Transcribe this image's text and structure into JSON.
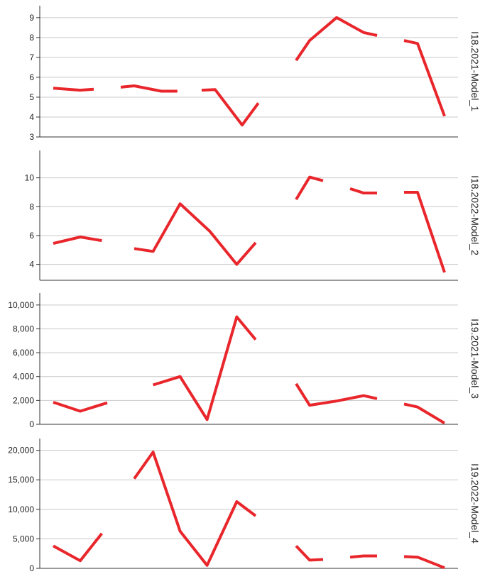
{
  "chart_data": [
    {
      "type": "line",
      "title": "I18.2021-Model_1",
      "yticks": [
        3,
        4,
        5,
        6,
        7,
        8,
        9
      ],
      "ytick_labels": [
        "3",
        "4",
        "5",
        "6",
        "7",
        "8",
        "9"
      ],
      "ylim": [
        3,
        9.6
      ],
      "grid": true,
      "color": "#e8262b",
      "segments": [
        [
          [
            1,
            5.45
          ],
          [
            2,
            5.35
          ],
          [
            2.5,
            5.4
          ]
        ],
        [
          [
            3.5,
            5.5
          ],
          [
            4,
            5.57
          ],
          [
            5,
            5.3
          ],
          [
            5.6,
            5.3
          ]
        ],
        [
          [
            6.5,
            5.35
          ],
          [
            7,
            5.38
          ],
          [
            8,
            3.6
          ],
          [
            8.6,
            4.7
          ]
        ],
        [
          [
            10,
            6.85
          ],
          [
            10.5,
            7.85
          ],
          [
            11.5,
            9.0
          ],
          [
            12.5,
            8.25
          ],
          [
            13,
            8.1
          ]
        ],
        [
          [
            14,
            7.85
          ],
          [
            14.5,
            7.7
          ],
          [
            15.5,
            4.05
          ]
        ]
      ]
    },
    {
      "type": "line",
      "title": "I18.2022-Model_2",
      "yticks": [
        4,
        6,
        8,
        10
      ],
      "ytick_labels": [
        "4",
        "6",
        "8",
        "10"
      ],
      "ylim": [
        2.9,
        11.9
      ],
      "grid": true,
      "color": "#e8262b",
      "segments": [
        [
          [
            1,
            5.45
          ],
          [
            2,
            5.9
          ],
          [
            2.8,
            5.65
          ]
        ],
        [
          [
            4,
            5.1
          ],
          [
            4.7,
            4.9
          ],
          [
            5.7,
            8.2
          ],
          [
            6.8,
            6.3
          ],
          [
            7.8,
            4.0
          ],
          [
            8.5,
            5.5
          ]
        ],
        [
          [
            10,
            8.5
          ],
          [
            10.5,
            10.05
          ],
          [
            11,
            9.8
          ]
        ],
        [
          [
            12,
            9.25
          ],
          [
            12.5,
            8.95
          ],
          [
            13,
            8.95
          ]
        ],
        [
          [
            14,
            9.0
          ],
          [
            14.5,
            9.0
          ],
          [
            15.5,
            3.45
          ]
        ]
      ]
    },
    {
      "type": "line",
      "title": "I19.2021-Model_3",
      "yticks": [
        0,
        2000,
        4000,
        6000,
        8000,
        10000
      ],
      "ytick_labels": [
        "0",
        "2,000",
        "4,000",
        "6,000",
        "8,000",
        "10,000"
      ],
      "ylim": [
        0,
        11000
      ],
      "grid": true,
      "color": "#e8262b",
      "segments": [
        [
          [
            1,
            1850
          ],
          [
            2,
            1100
          ],
          [
            3,
            1800
          ]
        ],
        [
          [
            4.7,
            3300
          ],
          [
            5.7,
            4000
          ],
          [
            6.7,
            400
          ],
          [
            7.8,
            9000
          ],
          [
            8.5,
            7100
          ]
        ],
        [
          [
            10,
            3400
          ],
          [
            10.5,
            1600
          ],
          [
            11.5,
            1950
          ],
          [
            12.5,
            2400
          ],
          [
            13,
            2150
          ]
        ],
        [
          [
            14,
            1700
          ],
          [
            14.5,
            1450
          ],
          [
            15.5,
            100
          ]
        ]
      ]
    },
    {
      "type": "line",
      "title": "I19.2022-Model_4",
      "yticks": [
        0,
        5000,
        10000,
        15000,
        20000
      ],
      "ytick_labels": [
        "0",
        "5,000",
        "10,000",
        "15,000",
        "20,000"
      ],
      "ylim": [
        0,
        22000
      ],
      "grid": true,
      "color": "#e8262b",
      "segments": [
        [
          [
            1,
            3800
          ],
          [
            2,
            1300
          ],
          [
            2.8,
            5900
          ]
        ],
        [
          [
            4,
            15200
          ],
          [
            4.7,
            19700
          ],
          [
            5.7,
            6300
          ],
          [
            6.7,
            500
          ],
          [
            7.8,
            11300
          ],
          [
            8.5,
            8900
          ]
        ],
        [
          [
            10,
            3800
          ],
          [
            10.5,
            1400
          ],
          [
            11,
            1500
          ]
        ],
        [
          [
            12,
            1900
          ],
          [
            12.5,
            2100
          ],
          [
            13,
            2100
          ]
        ],
        [
          [
            14,
            2000
          ],
          [
            14.5,
            1900
          ],
          [
            15.5,
            100
          ]
        ]
      ]
    }
  ]
}
